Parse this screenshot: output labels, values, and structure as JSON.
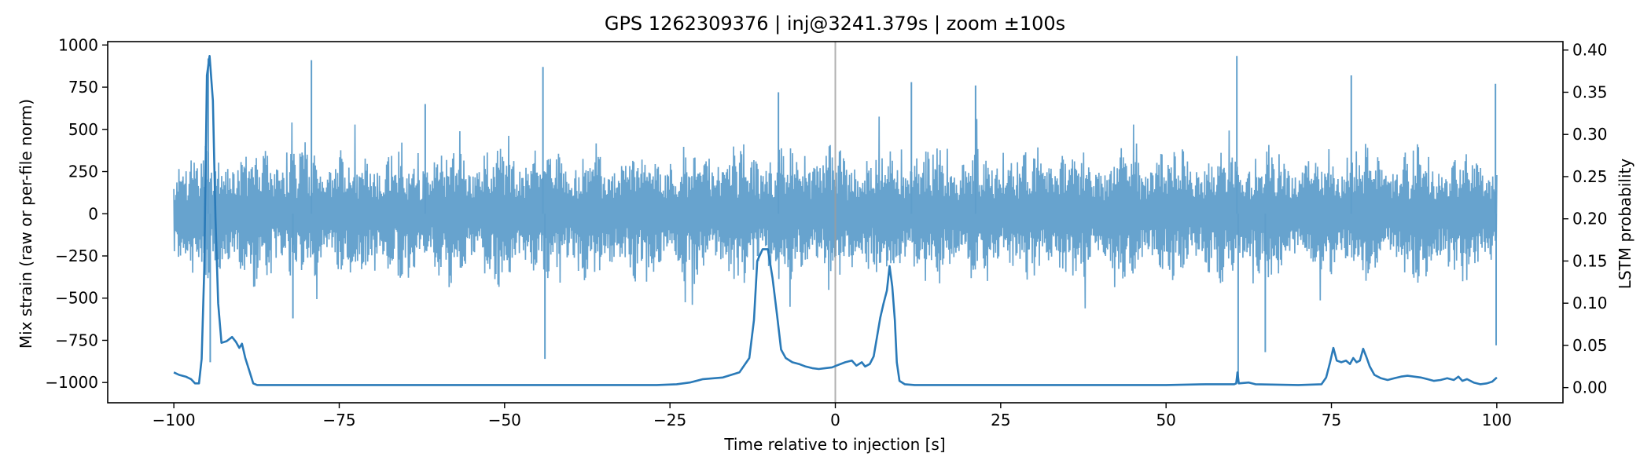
{
  "chart_data": {
    "type": "line",
    "title": "GPS 1262309376 | inj@3241.379s | zoom ±100s",
    "xlabel": "Time relative to injection [s]",
    "ylabel": "Mix strain (raw or per-file norm)",
    "y2label": "LSTM probability",
    "xlim": [
      -110,
      110
    ],
    "ylim": [
      -1120,
      1020
    ],
    "y2lim": [
      -0.018,
      0.41
    ],
    "xticks": [
      -100,
      -75,
      -50,
      -25,
      0,
      25,
      50,
      75,
      100
    ],
    "xtick_labels": [
      "−100",
      "−75",
      "−50",
      "−25",
      "0",
      "25",
      "50",
      "75",
      "100"
    ],
    "yticks": [
      1000,
      750,
      500,
      250,
      0,
      -250,
      -500,
      -750,
      -1000
    ],
    "ytick_labels": [
      "1000",
      "750",
      "500",
      "250",
      "0",
      "−250",
      "−500",
      "−750",
      "−1000"
    ],
    "y2ticks": [
      0.4,
      0.35,
      0.3,
      0.25,
      0.2,
      0.15,
      0.1,
      0.05,
      0.0
    ],
    "y2tick_labels": [
      "0.40",
      "0.35",
      "0.30",
      "0.25",
      "0.20",
      "0.15",
      "0.10",
      "0.05",
      "0.00"
    ],
    "grid": false,
    "injection_marker_x": 0,
    "series": [
      {
        "axis": "left",
        "color": "#5f9ecb",
        "x_range": [
          -100,
          100
        ],
        "typical_amplitude": 400,
        "peaks": [
          {
            "x": -94.8,
            "y": 920
          },
          {
            "x": -94.5,
            "y": -880
          },
          {
            "x": -79.2,
            "y": 910
          },
          {
            "x": -82.0,
            "y": -620
          },
          {
            "x": -44.2,
            "y": 870
          },
          {
            "x": -43.9,
            "y": -860
          },
          {
            "x": -62.0,
            "y": 650
          },
          {
            "x": -8.6,
            "y": 720
          },
          {
            "x": 11.5,
            "y": 780
          },
          {
            "x": 21.2,
            "y": 760
          },
          {
            "x": 60.7,
            "y": 935
          },
          {
            "x": 60.9,
            "y": -1000
          },
          {
            "x": 65.0,
            "y": -820
          },
          {
            "x": 78.0,
            "y": 820
          },
          {
            "x": 99.8,
            "y": 770
          },
          {
            "x": 99.9,
            "y": -780
          }
        ]
      },
      {
        "axis": "right",
        "color": "#2a7ab8",
        "points": [
          [
            -100,
            0.018
          ],
          [
            -99.2,
            0.015
          ],
          [
            -98.2,
            0.013
          ],
          [
            -97.4,
            0.01
          ],
          [
            -96.8,
            0.005
          ],
          [
            -96.2,
            0.005
          ],
          [
            -95.8,
            0.034
          ],
          [
            -95.4,
            0.14
          ],
          [
            -95.0,
            0.37
          ],
          [
            -94.6,
            0.393
          ],
          [
            -94.1,
            0.34
          ],
          [
            -93.7,
            0.2
          ],
          [
            -93.3,
            0.1
          ],
          [
            -92.8,
            0.053
          ],
          [
            -92.0,
            0.055
          ],
          [
            -91.2,
            0.06
          ],
          [
            -90.6,
            0.054
          ],
          [
            -90.1,
            0.047
          ],
          [
            -89.7,
            0.052
          ],
          [
            -89.2,
            0.035
          ],
          [
            -88.6,
            0.02
          ],
          [
            -88.0,
            0.005
          ],
          [
            -87.4,
            0.003
          ],
          [
            -85,
            0.003
          ],
          [
            -75,
            0.003
          ],
          [
            -60,
            0.003
          ],
          [
            -45,
            0.003
          ],
          [
            -35,
            0.003
          ],
          [
            -27,
            0.003
          ],
          [
            -24,
            0.004
          ],
          [
            -22,
            0.006
          ],
          [
            -20,
            0.01
          ],
          [
            -17,
            0.012
          ],
          [
            -14.5,
            0.018
          ],
          [
            -13.0,
            0.035
          ],
          [
            -12.3,
            0.08
          ],
          [
            -11.8,
            0.15
          ],
          [
            -11.0,
            0.164
          ],
          [
            -10.2,
            0.164
          ],
          [
            -9.5,
            0.13
          ],
          [
            -8.8,
            0.085
          ],
          [
            -8.2,
            0.045
          ],
          [
            -7.5,
            0.035
          ],
          [
            -6.5,
            0.03
          ],
          [
            -5.5,
            0.028
          ],
          [
            -4.5,
            0.025
          ],
          [
            -3.5,
            0.023
          ],
          [
            -2.5,
            0.022
          ],
          [
            -1.5,
            0.023
          ],
          [
            -0.5,
            0.024
          ],
          [
            0.5,
            0.027
          ],
          [
            1.5,
            0.03
          ],
          [
            2.5,
            0.032
          ],
          [
            3.2,
            0.026
          ],
          [
            4.0,
            0.03
          ],
          [
            4.5,
            0.025
          ],
          [
            5.2,
            0.028
          ],
          [
            5.8,
            0.037
          ],
          [
            6.3,
            0.06
          ],
          [
            6.8,
            0.083
          ],
          [
            7.3,
            0.1
          ],
          [
            7.8,
            0.115
          ],
          [
            8.2,
            0.144
          ],
          [
            8.6,
            0.12
          ],
          [
            9.0,
            0.08
          ],
          [
            9.3,
            0.03
          ],
          [
            9.7,
            0.008
          ],
          [
            10.5,
            0.004
          ],
          [
            12,
            0.003
          ],
          [
            20,
            0.003
          ],
          [
            35,
            0.003
          ],
          [
            50,
            0.003
          ],
          [
            56,
            0.004
          ],
          [
            60.3,
            0.004
          ],
          [
            60.6,
            0.005
          ],
          [
            60.8,
            0.018
          ],
          [
            61.0,
            0.005
          ],
          [
            62.5,
            0.006
          ],
          [
            63.5,
            0.004
          ],
          [
            70,
            0.003
          ],
          [
            73.5,
            0.004
          ],
          [
            74.2,
            0.012
          ],
          [
            74.8,
            0.03
          ],
          [
            75.3,
            0.047
          ],
          [
            75.8,
            0.032
          ],
          [
            76.5,
            0.03
          ],
          [
            77.2,
            0.032
          ],
          [
            77.8,
            0.028
          ],
          [
            78.3,
            0.035
          ],
          [
            78.8,
            0.03
          ],
          [
            79.3,
            0.032
          ],
          [
            79.8,
            0.046
          ],
          [
            80.3,
            0.036
          ],
          [
            80.8,
            0.025
          ],
          [
            81.5,
            0.015
          ],
          [
            82.5,
            0.011
          ],
          [
            83.5,
            0.009
          ],
          [
            84.5,
            0.011
          ],
          [
            85.5,
            0.013
          ],
          [
            86.5,
            0.014
          ],
          [
            87.5,
            0.013
          ],
          [
            88.5,
            0.012
          ],
          [
            89.5,
            0.01
          ],
          [
            90.5,
            0.008
          ],
          [
            91.5,
            0.009
          ],
          [
            92.5,
            0.011
          ],
          [
            93.5,
            0.009
          ],
          [
            94.2,
            0.013
          ],
          [
            94.8,
            0.008
          ],
          [
            95.5,
            0.01
          ],
          [
            96.5,
            0.006
          ],
          [
            97.5,
            0.004
          ],
          [
            98.5,
            0.005
          ],
          [
            99.3,
            0.007
          ],
          [
            100,
            0.012
          ]
        ]
      }
    ]
  }
}
